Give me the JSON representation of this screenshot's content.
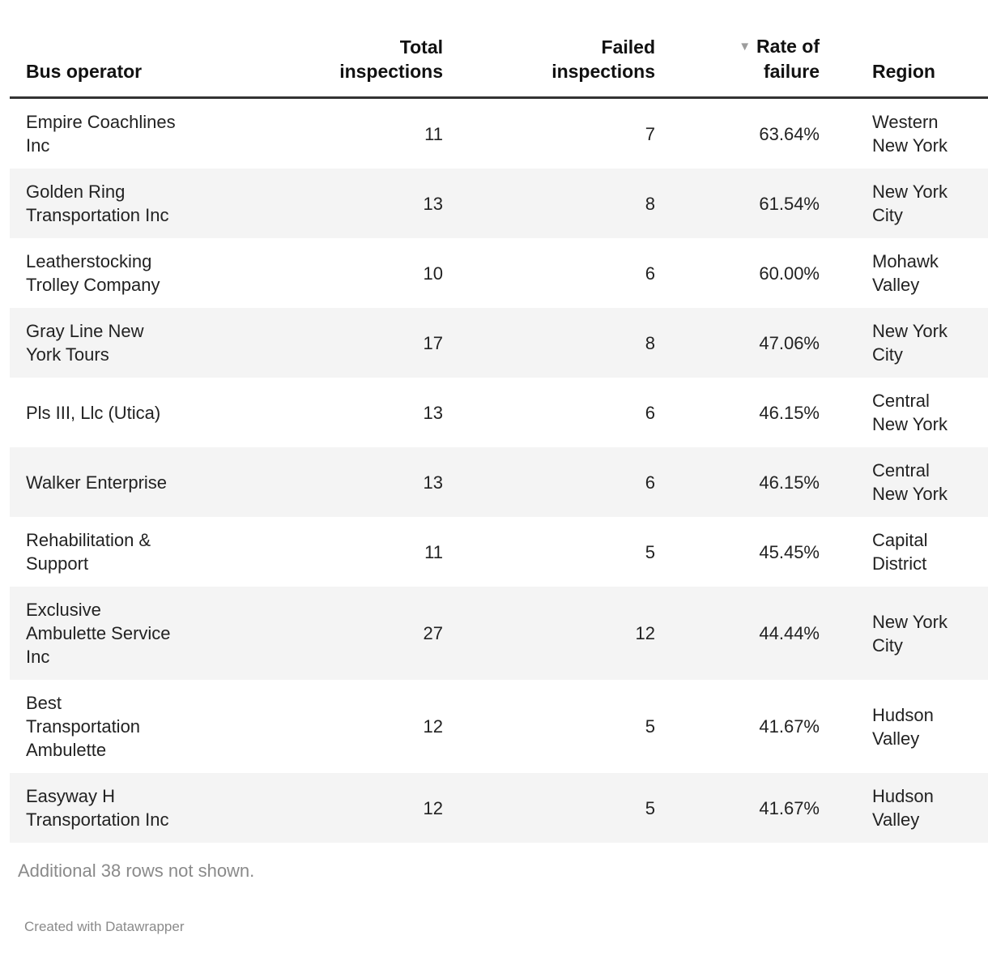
{
  "colors": {
    "header_rule": "#333333",
    "stripe": "#f4f4f4",
    "muted_text": "#8a8a8a",
    "body_text": "#222222"
  },
  "table": {
    "columns": [
      {
        "key": "operator",
        "label": "Bus operator",
        "align": "left",
        "sorted": false
      },
      {
        "key": "total",
        "label": "Total\ninspections",
        "align": "right",
        "sorted": false
      },
      {
        "key": "failed",
        "label": "Failed\ninspections",
        "align": "right",
        "sorted": false
      },
      {
        "key": "rate",
        "label": "Rate of\nfailure",
        "align": "right",
        "sorted": true,
        "sort_direction": "desc",
        "sort_glyph": "▼"
      },
      {
        "key": "region",
        "label": "Region",
        "align": "left",
        "sorted": false
      }
    ],
    "rows": [
      {
        "operator": "Empire Coachlines\nInc",
        "total": "11",
        "failed": "7",
        "rate": "63.64%",
        "region": "Western\nNew York"
      },
      {
        "operator": "Golden Ring\nTransportation Inc",
        "total": "13",
        "failed": "8",
        "rate": "61.54%",
        "region": "New York\nCity"
      },
      {
        "operator": "Leatherstocking\nTrolley Company",
        "total": "10",
        "failed": "6",
        "rate": "60.00%",
        "region": "Mohawk\nValley"
      },
      {
        "operator": "Gray Line New\nYork Tours",
        "total": "17",
        "failed": "8",
        "rate": "47.06%",
        "region": "New York\nCity"
      },
      {
        "operator": "Pls III, Llc (Utica)",
        "total": "13",
        "failed": "6",
        "rate": "46.15%",
        "region": "Central\nNew York"
      },
      {
        "operator": "Walker Enterprise",
        "total": "13",
        "failed": "6",
        "rate": "46.15%",
        "region": "Central\nNew York"
      },
      {
        "operator": "Rehabilitation &\nSupport",
        "total": "11",
        "failed": "5",
        "rate": "45.45%",
        "region": "Capital\nDistrict"
      },
      {
        "operator": "Exclusive\nAmbulette Service\nInc",
        "total": "27",
        "failed": "12",
        "rate": "44.44%",
        "region": "New York\nCity"
      },
      {
        "operator": "Best\nTransportation\nAmbulette",
        "total": "12",
        "failed": "5",
        "rate": "41.67%",
        "region": "Hudson\nValley"
      },
      {
        "operator": "Easyway H\nTransportation Inc",
        "total": "12",
        "failed": "5",
        "rate": "41.67%",
        "region": "Hudson\nValley"
      }
    ]
  },
  "footer": {
    "additional_rows_note": "Additional 38 rows not shown.",
    "attribution": "Created with Datawrapper"
  },
  "chart_data": {
    "type": "table",
    "title": "",
    "columns": [
      "Bus operator",
      "Total inspections",
      "Failed inspections",
      "Rate of failure",
      "Region"
    ],
    "sorted_by": "Rate of failure",
    "sort_direction": "descending",
    "rows": [
      [
        "Empire Coachlines Inc",
        11,
        7,
        "63.64%",
        "Western New York"
      ],
      [
        "Golden Ring Transportation Inc",
        13,
        8,
        "61.54%",
        "New York City"
      ],
      [
        "Leatherstocking Trolley Company",
        10,
        6,
        "60.00%",
        "Mohawk Valley"
      ],
      [
        "Gray Line New York Tours",
        17,
        8,
        "47.06%",
        "New York City"
      ],
      [
        "Pls III, Llc (Utica)",
        13,
        6,
        "46.15%",
        "Central New York"
      ],
      [
        "Walker Enterprise",
        13,
        6,
        "46.15%",
        "Central New York"
      ],
      [
        "Rehabilitation & Support",
        11,
        5,
        "45.45%",
        "Capital District"
      ],
      [
        "Exclusive Ambulette Service Inc",
        27,
        12,
        "44.44%",
        "New York City"
      ],
      [
        "Best Transportation Ambulette",
        12,
        5,
        "41.67%",
        "Hudson Valley"
      ],
      [
        "Easyway H Transportation Inc",
        12,
        5,
        "41.67%",
        "Hudson Valley"
      ]
    ],
    "note": "Additional 38 rows not shown.",
    "attribution": "Created with Datawrapper"
  }
}
